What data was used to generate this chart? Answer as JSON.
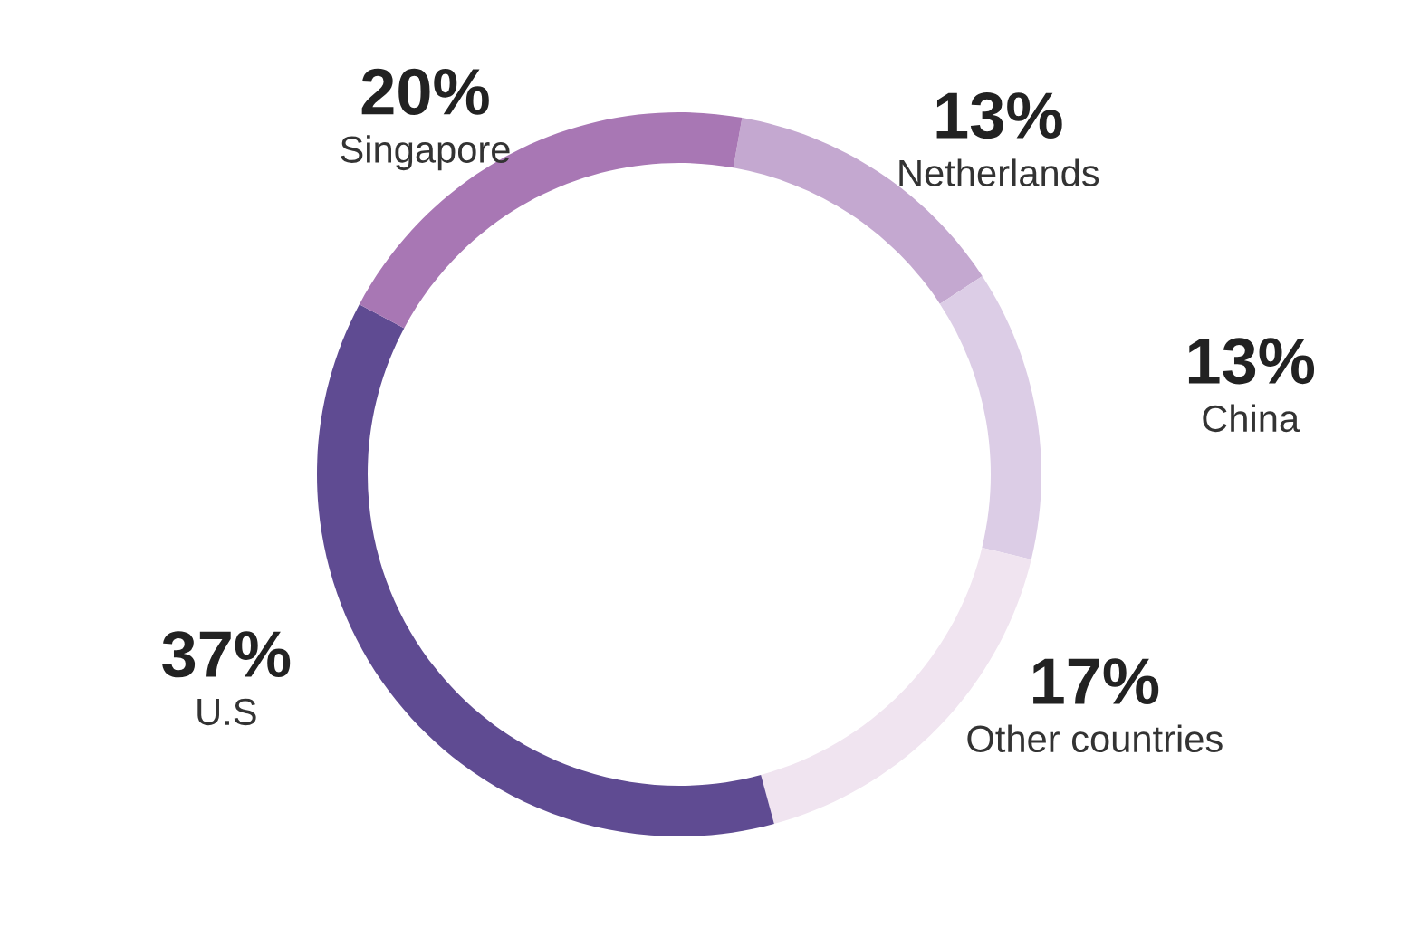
{
  "chart_data": {
    "type": "donut",
    "categories": [
      "Netherlands",
      "China",
      "Other countries",
      "U.S",
      "Singapore"
    ],
    "values": [
      13,
      13,
      17,
      37,
      20
    ],
    "colors": [
      "#c4a8d0",
      "#dccde6",
      "#f0e4f0",
      "#5f4b92",
      "#a877b4"
    ],
    "value_labels": [
      "13%",
      "13%",
      "17%",
      "37%",
      "20%"
    ],
    "legend": false
  }
}
